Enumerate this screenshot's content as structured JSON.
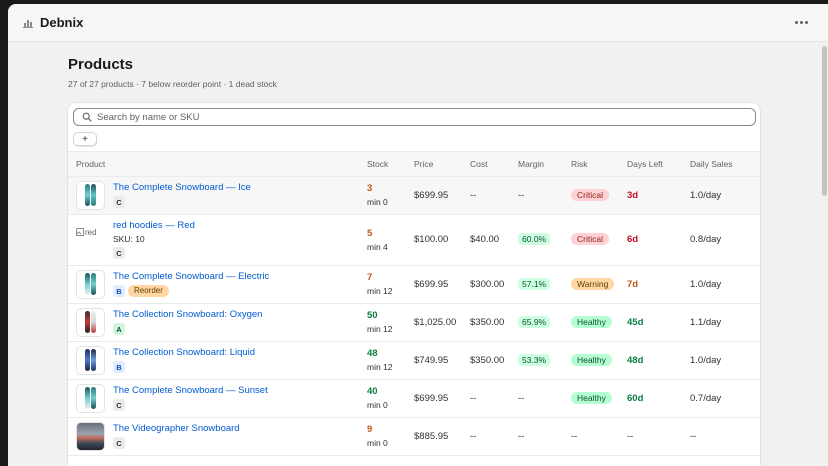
{
  "app": {
    "title": "Debnix",
    "more_icon": "more-horizontal-icon"
  },
  "page": {
    "title": "Products",
    "subtitle": "27 of 27 products · 7 below reorder point · 1 dead stock"
  },
  "search": {
    "placeholder": "Search by name or SKU",
    "value": ""
  },
  "filter": {
    "add_label": "+"
  },
  "table": {
    "headers": {
      "product": "Product",
      "stock": "Stock",
      "price": "Price",
      "cost": "Cost",
      "margin": "Margin",
      "risk": "Risk",
      "days_left": "Days Left",
      "daily_sales": "Daily Sales"
    },
    "rows": [
      {
        "name": "The Complete Snowboard — Ice",
        "sku": "",
        "grade": "C",
        "tag": "",
        "stock": "3",
        "min": "min 0",
        "price": "$699.95",
        "cost": "--",
        "margin": "--",
        "risk": "Critical",
        "days": "3d",
        "daily": "1.0/day",
        "thumb": "snowboard-icon"
      },
      {
        "name": "red hoodies — Red",
        "sku": "SKU: 10",
        "grade": "C",
        "tag": "",
        "stock": "5",
        "min": "min 4",
        "price": "$100.00",
        "cost": "$40.00",
        "margin": "60.0%",
        "risk": "Critical",
        "days": "6d",
        "daily": "0.8/day",
        "thumb": "broken-image",
        "alt": "red"
      },
      {
        "name": "The Complete Snowboard — Electric",
        "sku": "",
        "grade": "B",
        "tag": "Reorder",
        "stock": "7",
        "min": "min 12",
        "price": "$699.95",
        "cost": "$300.00",
        "margin": "57.1%",
        "risk": "Warning",
        "days": "7d",
        "daily": "1.0/day",
        "thumb": "snowboard-icon"
      },
      {
        "name": "The Collection Snowboard: Oxygen",
        "sku": "",
        "grade": "A",
        "tag": "",
        "stock": "50",
        "min": "min 12",
        "price": "$1,025.00",
        "cost": "$350.00",
        "margin": "65.9%",
        "risk": "Healthy",
        "days": "45d",
        "daily": "1.1/day",
        "thumb": "snowboard-icon"
      },
      {
        "name": "The Collection Snowboard: Liquid",
        "sku": "",
        "grade": "B",
        "tag": "",
        "stock": "48",
        "min": "min 12",
        "price": "$749.95",
        "cost": "$350.00",
        "margin": "53.3%",
        "risk": "Healthy",
        "days": "48d",
        "daily": "1.0/day",
        "thumb": "snowboard-icon"
      },
      {
        "name": "The Complete Snowboard — Sunset",
        "sku": "",
        "grade": "C",
        "tag": "",
        "stock": "40",
        "min": "min 0",
        "price": "$699.95",
        "cost": "--",
        "margin": "--",
        "risk": "Healthy",
        "days": "60d",
        "daily": "0.7/day",
        "thumb": "snowboard-icon"
      },
      {
        "name": "The Videographer Snowboard",
        "sku": "",
        "grade": "C",
        "tag": "",
        "stock": "9",
        "min": "min 0",
        "price": "$885.95",
        "cost": "--",
        "margin": "--",
        "risk": "--",
        "days": "--",
        "daily": "--",
        "thumb": "photo"
      }
    ]
  },
  "colors": {
    "link": "#005bd3",
    "critical": "#c70a24",
    "warning_stock": "#c05717",
    "healthy_stock": "#0c8040",
    "critical_badge": "#fed1d7",
    "warning_badge": "#ffd6a4",
    "healthy_badge": "#b4fed2"
  }
}
